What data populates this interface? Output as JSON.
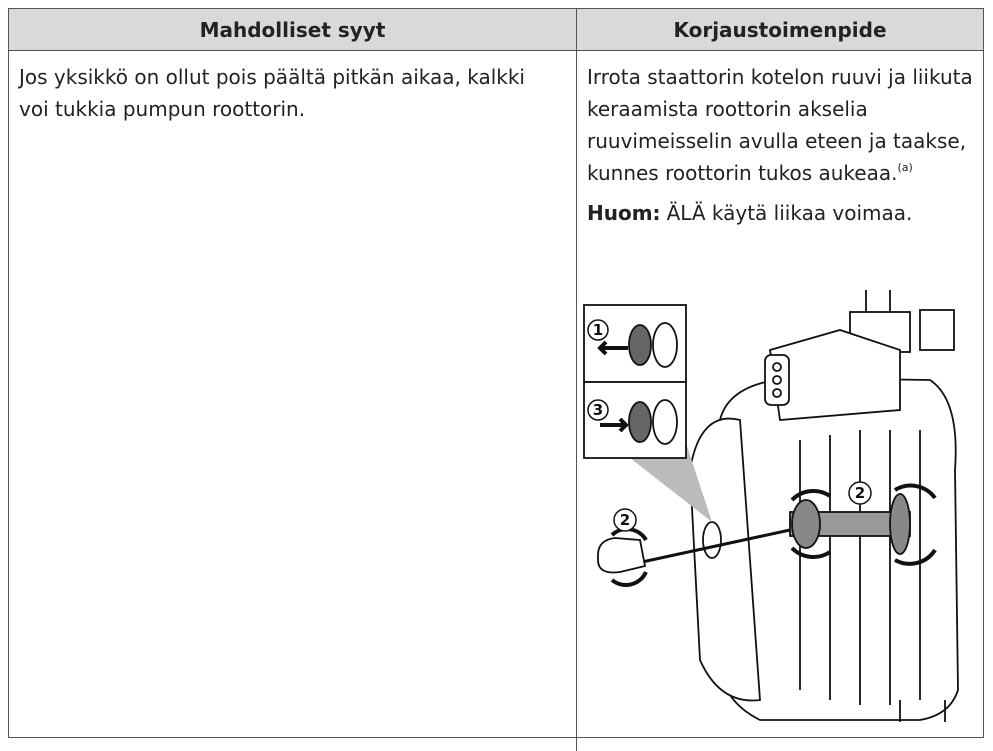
{
  "table": {
    "header": [
      "Mahdolliset syyt",
      "Korjaustoimenpide"
    ],
    "rows": [
      {
        "cause": "Jos yksikkö on ollut pois päältä pitkän aikaa, kalkki voi tukkia pumpun roottorin.",
        "action": {
          "text": "Irrota staattorin kotelon ruuvi ja liikuta keraamista roottorin akselia ruuvimeisselin avulla eteen ja taakse, kunnes roottorin tukos aukeaa.",
          "footnote_ref": "(a)",
          "note_label": "Huom:",
          "note_text": "ÄLÄ käytä liikaa voimaa.",
          "figure": {
            "labels": [
              "1",
              "3",
              "2",
              "2"
            ]
          }
        }
      }
    ]
  }
}
